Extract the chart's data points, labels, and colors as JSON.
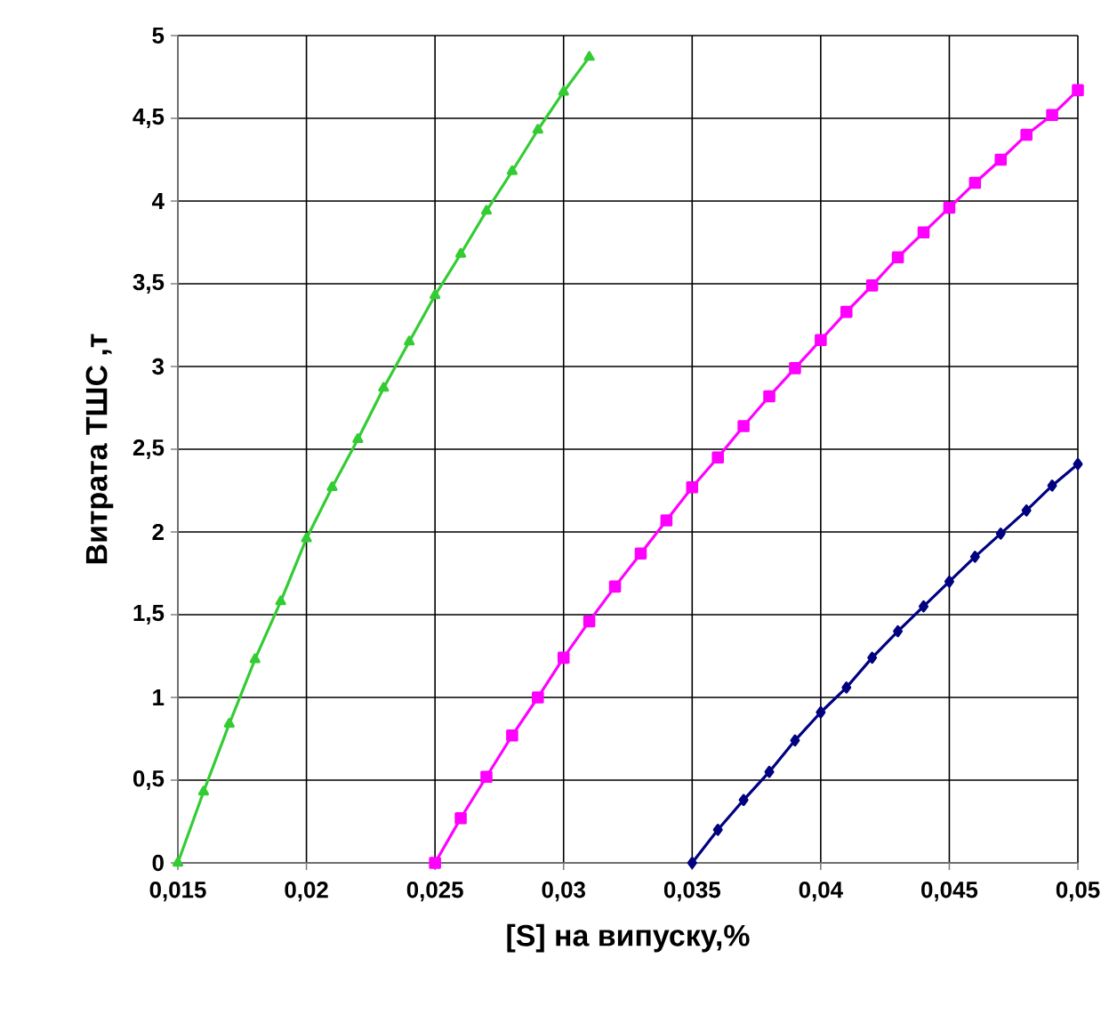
{
  "chart_data": {
    "type": "line",
    "xlabel": "[S] на випуску,%",
    "ylabel": "Витрата ТШС ,т",
    "xlim": [
      0.015,
      0.05
    ],
    "ylim": [
      0,
      5
    ],
    "xticks": [
      {
        "value": 0.015,
        "label": "0,015"
      },
      {
        "value": 0.02,
        "label": "0,02"
      },
      {
        "value": 0.025,
        "label": "0,025"
      },
      {
        "value": 0.03,
        "label": "0,03"
      },
      {
        "value": 0.035,
        "label": "0,035"
      },
      {
        "value": 0.04,
        "label": "0,04"
      },
      {
        "value": 0.045,
        "label": "0,045"
      },
      {
        "value": 0.05,
        "label": "0,05"
      }
    ],
    "yticks": [
      0,
      {
        "value": 0.5,
        "label": "0,5"
      },
      1,
      {
        "value": 1.5,
        "label": "1,5"
      },
      2,
      {
        "value": 2.5,
        "label": "2,5"
      },
      3,
      {
        "value": 3.5,
        "label": "3,5"
      },
      4,
      {
        "value": 4.5,
        "label": "4,5"
      },
      5
    ],
    "grid": true,
    "series": [
      {
        "color": "#33cc33",
        "marker": "triangle",
        "x": [
          0.015,
          0.016,
          0.017,
          0.018,
          0.019,
          0.02,
          0.021,
          0.022,
          0.023,
          0.024,
          0.025,
          0.026,
          0.027,
          0.028,
          0.029,
          0.03,
          0.031
        ],
        "values": [
          0,
          0.43,
          0.84,
          1.23,
          1.58,
          1.96,
          2.27,
          2.56,
          2.87,
          3.15,
          3.43,
          3.68,
          3.94,
          4.18,
          4.43,
          4.66,
          4.87
        ]
      },
      {
        "color": "#ff00ff",
        "marker": "square",
        "x": [
          0.025,
          0.026,
          0.027,
          0.028,
          0.029,
          0.03,
          0.031,
          0.032,
          0.033,
          0.034,
          0.035,
          0.036,
          0.037,
          0.038,
          0.039,
          0.04,
          0.041,
          0.042,
          0.043,
          0.044,
          0.045,
          0.046,
          0.047,
          0.048,
          0.049,
          0.05
        ],
        "values": [
          0,
          0.27,
          0.52,
          0.77,
          1.0,
          1.24,
          1.46,
          1.67,
          1.87,
          2.07,
          2.27,
          2.45,
          2.64,
          2.82,
          2.99,
          3.16,
          3.33,
          3.49,
          3.66,
          3.81,
          3.96,
          4.11,
          4.25,
          4.4,
          4.52,
          4.67
        ]
      },
      {
        "color": "#000080",
        "marker": "diamond",
        "x": [
          0.035,
          0.036,
          0.037,
          0.038,
          0.039,
          0.04,
          0.041,
          0.042,
          0.043,
          0.044,
          0.045,
          0.046,
          0.047,
          0.048,
          0.049,
          0.05
        ],
        "values": [
          0,
          0.2,
          0.38,
          0.55,
          0.74,
          0.91,
          1.06,
          1.24,
          1.4,
          1.55,
          1.7,
          1.85,
          1.99,
          2.13,
          2.28,
          2.41
        ]
      }
    ]
  }
}
